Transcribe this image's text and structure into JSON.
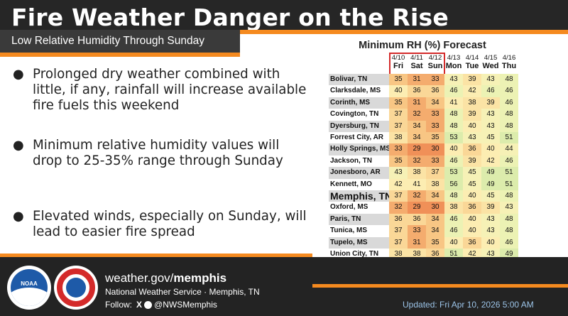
{
  "header": {
    "title": "Fire Weather Danger on the Rise",
    "subtitle": "Low Relative Humidity Through Sunday"
  },
  "bullets": [
    "Prolonged dry weather combined with little, if any, rainfall will increase available fire fuels this weekend",
    "Minimum relative humidity values will drop to 25-35% range through Sunday",
    "Elevated winds, especially on Sunday, will lead to easier fire spread"
  ],
  "table": {
    "title": "Minimum RH (%) Forecast",
    "dates": [
      "4/10",
      "4/11",
      "4/12",
      "4/13",
      "4/14",
      "4/15",
      "4/16"
    ],
    "days": [
      "Fri",
      "Sat",
      "Sun",
      "Mon",
      "Tue",
      "Wed",
      "Thu"
    ],
    "rows": [
      {
        "city": "Bolivar, TN",
        "values": [
          35,
          31,
          33,
          43,
          39,
          43,
          48
        ]
      },
      {
        "city": "Clarksdale, MS",
        "values": [
          40,
          36,
          36,
          46,
          42,
          46,
          46
        ]
      },
      {
        "city": "Corinth, MS",
        "values": [
          35,
          31,
          34,
          41,
          38,
          39,
          46
        ]
      },
      {
        "city": "Covington, TN",
        "values": [
          37,
          32,
          33,
          48,
          39,
          43,
          48
        ]
      },
      {
        "city": "Dyersburg, TN",
        "values": [
          37,
          34,
          33,
          48,
          40,
          43,
          48
        ]
      },
      {
        "city": "Forrest City, AR",
        "values": [
          38,
          34,
          35,
          53,
          43,
          45,
          51
        ]
      },
      {
        "city": "Holly Springs, MS",
        "values": [
          33,
          29,
          30,
          40,
          36,
          40,
          44
        ]
      },
      {
        "city": "Jackson, TN",
        "values": [
          35,
          32,
          33,
          46,
          39,
          42,
          46
        ]
      },
      {
        "city": "Jonesboro, AR",
        "values": [
          43,
          38,
          37,
          53,
          45,
          49,
          51
        ]
      },
      {
        "city": "Kennett, MO",
        "values": [
          42,
          41,
          38,
          56,
          45,
          49,
          51
        ]
      },
      {
        "city": "Memphis, TN",
        "values": [
          37,
          32,
          34,
          48,
          40,
          45,
          48
        ]
      },
      {
        "city": "Oxford, MS",
        "values": [
          32,
          29,
          30,
          38,
          36,
          39,
          43
        ]
      },
      {
        "city": "Paris, TN",
        "values": [
          36,
          36,
          34,
          46,
          40,
          43,
          48
        ]
      },
      {
        "city": "Tunica, MS",
        "values": [
          37,
          33,
          34,
          46,
          40,
          43,
          48
        ]
      },
      {
        "city": "Tupelo, MS",
        "values": [
          37,
          31,
          35,
          40,
          36,
          40,
          46
        ]
      },
      {
        "city": "Union City, TN",
        "values": [
          38,
          38,
          36,
          51,
          42,
          43,
          49
        ]
      }
    ]
  },
  "colors": {
    "accent": "#f58a1f",
    "highlight_box": "#d42a2a",
    "dark_bar": "#262626"
  },
  "footer": {
    "url_prefix": "weather.gov/",
    "url_bold": "memphis",
    "office": "National Weather Service · Memphis, TN",
    "follow_label": "Follow:",
    "x_icon": "X",
    "handle": "@NWSMemphis",
    "updated": "Updated: Fri Apr 10, 2026 5:00 AM",
    "noaa_label": "NOAA"
  }
}
